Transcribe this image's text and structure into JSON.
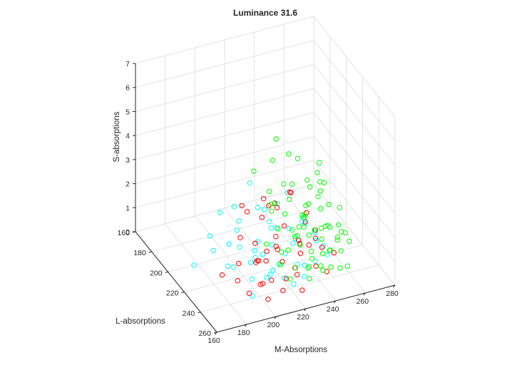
{
  "chart_data": {
    "type": "scatter",
    "title": "Luminance 31.6",
    "xlabel": "M-Absorptions",
    "ylabel": "L-absorptions",
    "zlabel": "S-absorptions",
    "xlim": [
      160,
      280
    ],
    "ylim": [
      160,
      260
    ],
    "zlim": [
      0,
      7
    ],
    "xticks": [
      "160",
      "180",
      "200",
      "220",
      "240",
      "260",
      "280"
    ],
    "yticks": [
      "160",
      "180",
      "200",
      "220",
      "240",
      "260"
    ],
    "zticks": [
      "0",
      "1",
      "2",
      "3",
      "4",
      "5",
      "6",
      "7"
    ],
    "grid": true,
    "series": [
      {
        "color": "#00ffff",
        "points": [
          [
            172,
            210,
            0.5
          ],
          [
            190,
            230,
            2.5
          ],
          [
            195,
            240,
            0.1
          ],
          [
            210,
            245,
            1.4
          ],
          [
            205,
            225,
            0.9
          ],
          [
            215,
            240,
            1.2
          ],
          [
            220,
            245,
            0.4
          ],
          [
            210,
            230,
            0.2
          ],
          [
            225,
            235,
            1.6
          ],
          [
            230,
            240,
            0.8
          ],
          [
            200,
            215,
            1.0
          ],
          [
            205,
            205,
            1.6
          ],
          [
            185,
            210,
            0.9
          ],
          [
            195,
            200,
            1.9
          ],
          [
            215,
            210,
            2.2
          ],
          [
            215,
            200,
            2.8
          ],
          [
            225,
            215,
            1.4
          ],
          [
            235,
            220,
            1.0
          ],
          [
            240,
            235,
            0.6
          ],
          [
            200,
            230,
            0.3
          ],
          [
            190,
            220,
            1.5
          ],
          [
            225,
            230,
            2.0
          ],
          [
            245,
            225,
            1.3
          ],
          [
            235,
            210,
            2.5
          ],
          [
            210,
            215,
            0.7
          ],
          [
            218,
            222,
            1.1
          ],
          [
            203,
            232,
            1.9
          ],
          [
            228,
            220,
            0.5
          ],
          [
            238,
            240,
            1.7
          ],
          [
            192,
            222,
            0.6
          ],
          [
            213,
            228,
            2.4
          ],
          [
            222,
            205,
            1.8
          ],
          [
            232,
            228,
            0.3
          ],
          [
            208,
            238,
            0.7
          ],
          [
            242,
            215,
            1.4
          ],
          [
            198,
            212,
            2.6
          ],
          [
            248,
            230,
            0.9
          ],
          [
            180,
            215,
            1.8
          ],
          [
            220,
            225,
            2.9
          ],
          [
            207,
            243,
            1.1
          ],
          [
            227,
            245,
            0.6
          ],
          [
            234,
            233,
            2.2
          ],
          [
            196,
            236,
            1.3
          ],
          [
            216,
            214,
            0.4
          ],
          [
            239,
            222,
            1.9
          ],
          [
            200,
            250,
            0.3
          ],
          [
            212,
            248,
            0.9
          ],
          [
            224,
            210,
            1.2
          ],
          [
            186,
            226,
            0.9
          ],
          [
            244,
            242,
            1.1
          ]
        ]
      },
      {
        "color": "#ff0000",
        "points": [
          [
            180,
            230,
            0.8
          ],
          [
            185,
            240,
            0.9
          ],
          [
            190,
            245,
            0.5
          ],
          [
            200,
            250,
            0.3
          ],
          [
            205,
            245,
            0.8
          ],
          [
            215,
            245,
            0.7
          ],
          [
            225,
            240,
            0.5
          ],
          [
            230,
            235,
            1.1
          ],
          [
            235,
            225,
            1.0
          ],
          [
            245,
            215,
            1.7
          ],
          [
            240,
            205,
            2.2
          ],
          [
            225,
            205,
            1.9
          ],
          [
            215,
            215,
            2.0
          ],
          [
            205,
            225,
            1.5
          ],
          [
            200,
            235,
            1.2
          ],
          [
            210,
            230,
            1.3
          ],
          [
            220,
            225,
            1.0
          ],
          [
            230,
            215,
            1.4
          ],
          [
            195,
            225,
            1.9
          ],
          [
            205,
            215,
            2.4
          ],
          [
            215,
            220,
            0.4
          ],
          [
            250,
            225,
            0.6
          ],
          [
            245,
            240,
            0.3
          ],
          [
            235,
            245,
            0.9
          ],
          [
            210,
            250,
            0.5
          ],
          [
            222,
            218,
            2.6
          ],
          [
            228,
            232,
            0.4
          ],
          [
            212,
            238,
            1.8
          ],
          [
            238,
            218,
            0.8
          ],
          [
            198,
            242,
            1.6
          ],
          [
            218,
            228,
            2.9
          ],
          [
            233,
            240,
            1.6
          ],
          [
            244,
            228,
            1.2
          ],
          [
            208,
            222,
            0.6
          ],
          [
            226,
            212,
            0.9
          ],
          [
            203,
            238,
            0.4
          ],
          [
            236,
            230,
            2.1
          ],
          [
            190,
            232,
            1.2
          ],
          [
            252,
            236,
            0.8
          ],
          [
            220,
            208,
            2.4
          ],
          [
            214,
            242,
            1.3
          ],
          [
            230,
            222,
            3.1
          ],
          [
            207,
            205,
            2.2
          ],
          [
            240,
            235,
            1.9
          ],
          [
            196,
            248,
            0.9
          ],
          [
            224,
            248,
            0.2
          ]
        ]
      },
      {
        "color": "#00ff00",
        "points": [
          [
            230,
            220,
            0.6
          ],
          [
            240,
            215,
            1.2
          ],
          [
            250,
            205,
            1.5
          ],
          [
            260,
            205,
            1.2
          ],
          [
            255,
            215,
            0.9
          ],
          [
            245,
            225,
            1.4
          ],
          [
            235,
            230,
            1.9
          ],
          [
            225,
            225,
            2.4
          ],
          [
            220,
            215,
            3.0
          ],
          [
            215,
            205,
            3.5
          ],
          [
            225,
            210,
            4.0
          ],
          [
            230,
            205,
            4.6
          ],
          [
            255,
            210,
            3.0
          ],
          [
            265,
            200,
            2.0
          ],
          [
            240,
            230,
            0.8
          ],
          [
            250,
            235,
            0.9
          ],
          [
            260,
            230,
            0.5
          ],
          [
            245,
            245,
            0.7
          ],
          [
            235,
            240,
            1.0
          ],
          [
            230,
            228,
            1.5
          ],
          [
            240,
            222,
            2.0
          ],
          [
            250,
            220,
            2.5
          ],
          [
            260,
            215,
            1.8
          ],
          [
            270,
            210,
            1.3
          ],
          [
            220,
            230,
            1.1
          ],
          [
            225,
            238,
            0.7
          ],
          [
            235,
            235,
            0.4
          ],
          [
            245,
            218,
            0.9
          ],
          [
            255,
            225,
            0.4
          ],
          [
            238,
            210,
            2.8
          ],
          [
            228,
            218,
            3.3
          ],
          [
            248,
            212,
            1.9
          ],
          [
            258,
            220,
            1.1
          ],
          [
            242,
            238,
            0.5
          ],
          [
            232,
            242,
            0.8
          ],
          [
            222,
            222,
            1.7
          ],
          [
            252,
            228,
            1.6
          ],
          [
            236,
            226,
            2.2
          ],
          [
            246,
            232,
            1.3
          ],
          [
            262,
            222,
            0.7
          ],
          [
            226,
            232,
            2.0
          ],
          [
            216,
            236,
            0.9
          ],
          [
            244,
            206,
            3.6
          ],
          [
            234,
            214,
            2.4
          ],
          [
            254,
            240,
            0.3
          ],
          [
            218,
            244,
            0.6
          ],
          [
            238,
            248,
            0.8
          ],
          [
            266,
            216,
            0.9
          ],
          [
            228,
            224,
            4.8
          ],
          [
            248,
            226,
            3.4
          ],
          [
            212,
            226,
            1.4
          ],
          [
            240,
            244,
            1.3
          ],
          [
            256,
            212,
            2.3
          ],
          [
            232,
            236,
            2.6
          ],
          [
            270,
            222,
            0.4
          ],
          [
            258,
            234,
            1.5
          ],
          [
            222,
            214,
            2.1
          ],
          [
            244,
            240,
            2.2
          ],
          [
            230,
            246,
            0.5
          ],
          [
            264,
            228,
            1.1
          ],
          [
            250,
            244,
            1.7
          ],
          [
            236,
            220,
            1.1
          ],
          [
            218,
            220,
            2.7
          ],
          [
            226,
            242,
            1.8
          ],
          [
            246,
            214,
            3.0
          ],
          [
            214,
            232,
            3.3
          ],
          [
            252,
            218,
            3.8
          ],
          [
            238,
            232,
            3.6
          ],
          [
            260,
            238,
            0.2
          ]
        ]
      }
    ]
  }
}
